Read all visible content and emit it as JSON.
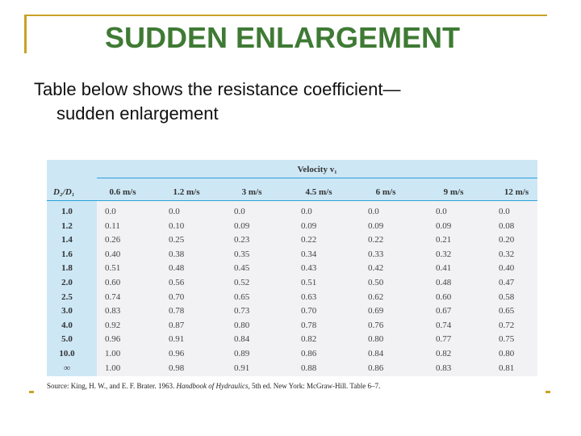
{
  "slide": {
    "title": "SUDDEN ENLARGEMENT",
    "body_line1": "Table below shows the resistance coefficient—",
    "body_line2": "sudden enlargement"
  },
  "colors": {
    "title": "#3f7a34",
    "frame": "#c9a227",
    "table_header_bg": "#cde7f5",
    "table_body_bg": "#f2f2f4",
    "rule": "#2aa2d8"
  },
  "table": {
    "group_header": "Velocity v₁",
    "ratio_header": "D₂/D₁",
    "columns": [
      "0.6 m/s",
      "1.2 m/s",
      "3 m/s",
      "4.5 m/s",
      "6 m/s",
      "9 m/s",
      "12 m/s"
    ],
    "rows": [
      {
        "ratio": "1.0",
        "values": [
          "0.0",
          "0.0",
          "0.0",
          "0.0",
          "0.0",
          "0.0",
          "0.0"
        ]
      },
      {
        "ratio": "1.2",
        "values": [
          "0.11",
          "0.10",
          "0.09",
          "0.09",
          "0.09",
          "0.09",
          "0.08"
        ]
      },
      {
        "ratio": "1.4",
        "values": [
          "0.26",
          "0.25",
          "0.23",
          "0.22",
          "0.22",
          "0.21",
          "0.20"
        ]
      },
      {
        "ratio": "1.6",
        "values": [
          "0.40",
          "0.38",
          "0.35",
          "0.34",
          "0.33",
          "0.32",
          "0.32"
        ]
      },
      {
        "ratio": "1.8",
        "values": [
          "0.51",
          "0.48",
          "0.45",
          "0.43",
          "0.42",
          "0.41",
          "0.40"
        ]
      },
      {
        "ratio": "2.0",
        "values": [
          "0.60",
          "0.56",
          "0.52",
          "0.51",
          "0.50",
          "0.48",
          "0.47"
        ]
      },
      {
        "ratio": "2.5",
        "values": [
          "0.74",
          "0.70",
          "0.65",
          "0.63",
          "0.62",
          "0.60",
          "0.58"
        ]
      },
      {
        "ratio": "3.0",
        "values": [
          "0.83",
          "0.78",
          "0.73",
          "0.70",
          "0.69",
          "0.67",
          "0.65"
        ]
      },
      {
        "ratio": "4.0",
        "values": [
          "0.92",
          "0.87",
          "0.80",
          "0.78",
          "0.76",
          "0.74",
          "0.72"
        ]
      },
      {
        "ratio": "5.0",
        "values": [
          "0.96",
          "0.91",
          "0.84",
          "0.82",
          "0.80",
          "0.77",
          "0.75"
        ]
      },
      {
        "ratio": "10.0",
        "values": [
          "1.00",
          "0.96",
          "0.89",
          "0.86",
          "0.84",
          "0.82",
          "0.80"
        ]
      },
      {
        "ratio": "∞",
        "values": [
          "1.00",
          "0.98",
          "0.91",
          "0.88",
          "0.86",
          "0.83",
          "0.81"
        ]
      }
    ],
    "source_prefix": "Source: King, H. W., and E. F. Brater. 1963.",
    "source_title": "Handbook of Hydraulics,",
    "source_suffix": "5th ed. New York: McGraw-Hill. Table 6–7."
  }
}
